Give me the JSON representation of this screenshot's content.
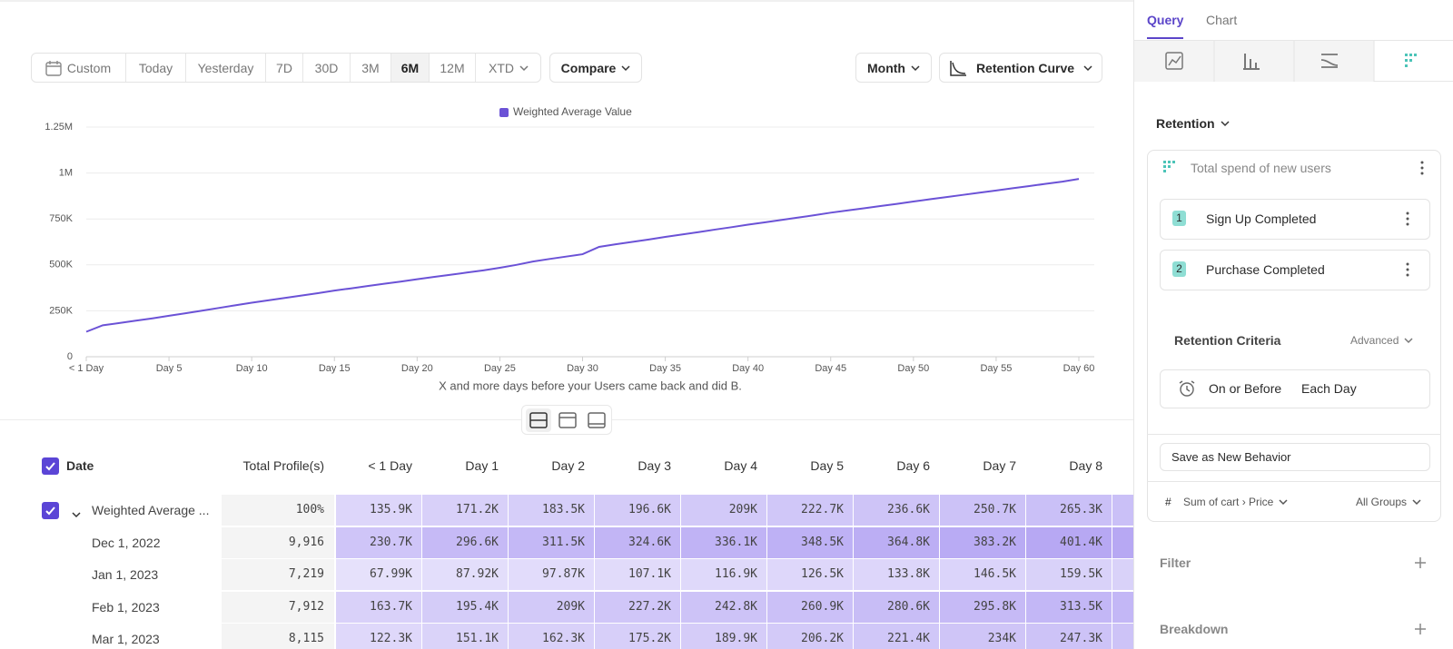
{
  "toolbar": {
    "date_ranges": [
      "Custom",
      "Today",
      "Yesterday",
      "7D",
      "30D",
      "3M",
      "6M",
      "12M",
      "XTD"
    ],
    "selected_index": 6,
    "compare": "Compare",
    "interval": "Month",
    "chart_view": "Retention Curve"
  },
  "chart_data": {
    "type": "line",
    "x_label": "X and more days before your Users came back and did B.",
    "x": [
      0,
      1,
      2,
      3,
      4,
      5,
      6,
      7,
      8,
      9,
      10,
      11,
      12,
      13,
      14,
      15,
      16,
      17,
      18,
      19,
      20,
      21,
      22,
      23,
      24,
      25,
      26,
      27,
      28,
      29,
      30,
      31,
      32,
      33,
      34,
      35,
      36,
      37,
      38,
      39,
      40,
      41,
      42,
      43,
      44,
      45,
      46,
      47,
      48,
      49,
      50,
      51,
      52,
      53,
      54,
      55,
      56,
      57,
      58,
      59,
      60
    ],
    "series": [
      {
        "name": "Weighted Average Value",
        "color": "#6b52d6",
        "values": [
          135900,
          171200,
          183500,
          196600,
          209000,
          222700,
          236600,
          250700,
          265300,
          280000,
          294000,
          307000,
          320000,
          333000,
          346000,
          360000,
          372000,
          385000,
          397000,
          409000,
          422000,
          434000,
          446000,
          458000,
          470000,
          484000,
          500000,
          518000,
          532000,
          545000,
          558000,
          598000,
          612000,
          625000,
          638000,
          652000,
          665000,
          678000,
          692000,
          705000,
          719000,
          731000,
          744000,
          757000,
          770000,
          784000,
          796000,
          808000,
          820000,
          832000,
          845000,
          857000,
          869000,
          881000,
          893000,
          905000,
          917000,
          929000,
          941000,
          953000,
          968000
        ]
      }
    ],
    "xlim": [
      0,
      60
    ],
    "xticks": [
      {
        "value": 0,
        "label": "< 1 Day"
      },
      {
        "value": 5,
        "label": "Day 5"
      },
      {
        "value": 10,
        "label": "Day 10"
      },
      {
        "value": 15,
        "label": "Day 15"
      },
      {
        "value": 20,
        "label": "Day 20"
      },
      {
        "value": 25,
        "label": "Day 25"
      },
      {
        "value": 30,
        "label": "Day 30"
      },
      {
        "value": 35,
        "label": "Day 35"
      },
      {
        "value": 40,
        "label": "Day 40"
      },
      {
        "value": 45,
        "label": "Day 45"
      },
      {
        "value": 50,
        "label": "Day 50"
      },
      {
        "value": 55,
        "label": "Day 55"
      },
      {
        "value": 60,
        "label": "Day 60"
      }
    ],
    "ylim": [
      0,
      1250000
    ],
    "yticks": [
      0,
      {
        "value": 250000,
        "label": "250K"
      },
      {
        "value": 500000,
        "label": "500K"
      },
      {
        "value": 750000,
        "label": "750K"
      },
      {
        "value": 1000000,
        "label": "1M"
      },
      {
        "value": 1250000,
        "label": "1.25M"
      }
    ],
    "grid": true
  },
  "table": {
    "columns": [
      "Date",
      "Total Profile(s)",
      "< 1 Day",
      "Day 1",
      "Day 2",
      "Day 3",
      "Day 4",
      "Day 5",
      "Day 6",
      "Day 7",
      "Day 8"
    ],
    "rows": [
      [
        "Weighted Average ...",
        "100%",
        "135.9K",
        "171.2K",
        "183.5K",
        "196.6K",
        "209K",
        "222.7K",
        "236.6K",
        "250.7K",
        "265.3K"
      ],
      [
        "Dec 1, 2022",
        "9,916",
        "230.7K",
        "296.6K",
        "311.5K",
        "324.6K",
        "336.1K",
        "348.5K",
        "364.8K",
        "383.2K",
        "401.4K"
      ],
      [
        "Jan 1, 2023",
        "7,219",
        "67.99K",
        "87.92K",
        "97.87K",
        "107.1K",
        "116.9K",
        "126.5K",
        "133.8K",
        "146.5K",
        "159.5K"
      ],
      [
        "Feb 1, 2023",
        "7,912",
        "163.7K",
        "195.4K",
        "209K",
        "227.2K",
        "242.8K",
        "260.9K",
        "280.6K",
        "295.8K",
        "313.5K"
      ],
      [
        "Mar 1, 2023",
        "8,115",
        "122.3K",
        "151.1K",
        "162.3K",
        "175.2K",
        "189.9K",
        "206.2K",
        "221.4K",
        "234K",
        "247.3K"
      ]
    ]
  },
  "panel": {
    "tabs": [
      "Query",
      "Chart"
    ],
    "report": "Retention",
    "metric_name": "Total spend of new users",
    "steps": [
      {
        "number": "1",
        "event": "Sign Up Completed"
      },
      {
        "number": "2",
        "event": "Purchase Completed"
      }
    ],
    "criteria_title": "Retention Criteria",
    "criteria_mode": "Advanced",
    "criteria_when": "On or Before",
    "criteria_unit": "Each Day",
    "save_button": "Save as New Behavior",
    "measure_symbol": "#",
    "measure": "Sum of cart › Price",
    "groups": "All Groups",
    "filter": "Filter",
    "breakdown": "Breakdown"
  }
}
